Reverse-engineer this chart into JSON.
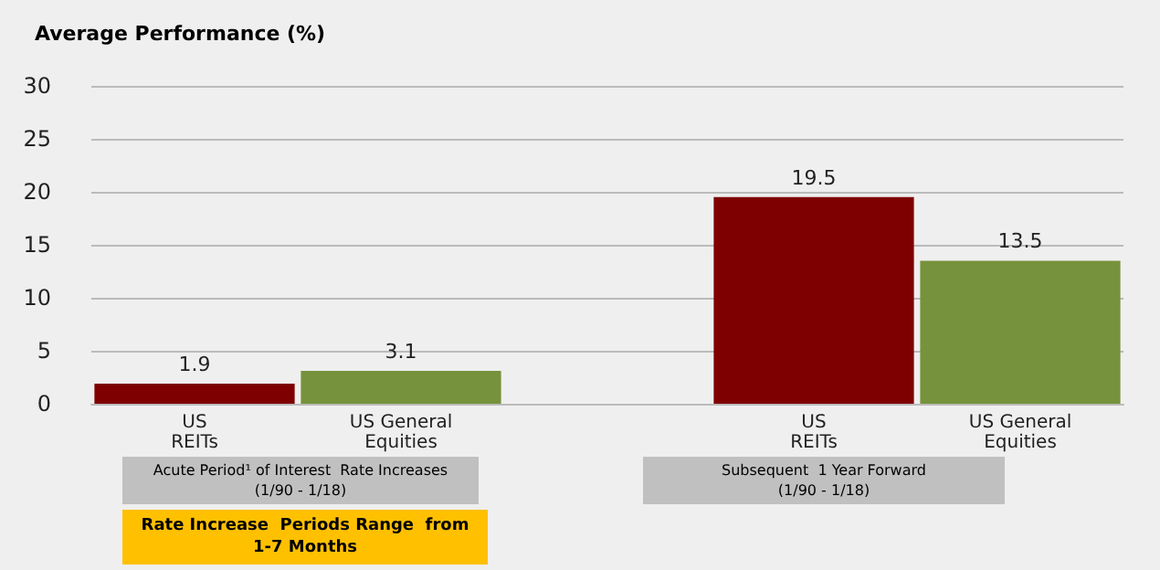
{
  "chart_data": {
    "type": "bar",
    "title": "Average Performance (%)",
    "categories": [
      "US\nREITs",
      "US General\nEquities",
      null,
      "US\nREITs",
      "US General\nEquities"
    ],
    "values": [
      1.9,
      3.1,
      null,
      19.5,
      13.5
    ],
    "colors": [
      "#7f0000",
      "#76923c",
      "#7f0000",
      "#7f0000",
      "#76923c"
    ],
    "ylim": [
      0,
      30
    ],
    "yticks": [
      0,
      5,
      10,
      15,
      20,
      25,
      30
    ],
    "grid": "y",
    "data_labels": true,
    "annotations": [
      "Acute Period¹ of Interest  Rate Increases\n(1/90 - 1/18)",
      "Subsequent  1 Year Forward\n(1/90 - 1/18)",
      "Rate Increase  Periods Range  from\n1-7 Months"
    ]
  }
}
